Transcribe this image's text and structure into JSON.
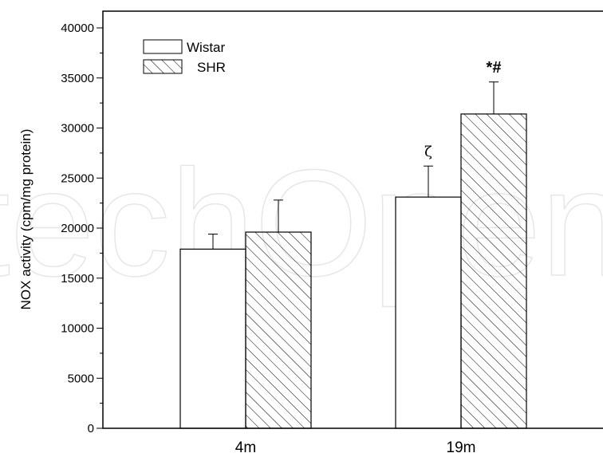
{
  "chart_data": {
    "type": "bar",
    "categories": [
      "4m",
      "19m"
    ],
    "series": [
      {
        "name": "Wistar",
        "pattern": "open",
        "values": [
          17900,
          23100
        ],
        "errors": [
          1500,
          3100
        ]
      },
      {
        "name": "SHR",
        "pattern": "hatched",
        "values": [
          19600,
          31400
        ],
        "errors": [
          3200,
          3200
        ]
      }
    ],
    "annotations": [
      {
        "category": "19m",
        "series": "Wistar",
        "text": "ζ"
      },
      {
        "category": "19m",
        "series": "SHR",
        "text": "*#"
      }
    ],
    "ylabel": "NOX activity (cpm/mg protein)",
    "xlabel": "",
    "ylim": [
      0,
      40000
    ],
    "yticks": [
      0,
      5000,
      10000,
      15000,
      20000,
      25000,
      30000,
      35000,
      40000
    ],
    "grid": false,
    "legend_position": "top-left",
    "watermark": "techOpen",
    "colors": {
      "bar_fill": "#ffffff",
      "stroke": "#000000",
      "watermark": "#e6e6e6"
    }
  }
}
